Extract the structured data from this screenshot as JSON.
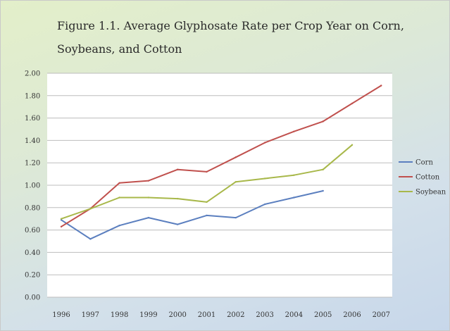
{
  "title_line1": "Figure 1.1.  Average Glyphosate Rate per Crop Year on Corn,",
  "title_line2": "Soybeans, and Cotton",
  "chart_data": {
    "type": "line",
    "title": "Figure 1.1.  Average Glyphosate Rate per Crop Year on Corn, Soybeans, and Cotton",
    "xlabel": "",
    "ylabel": "",
    "x": [
      "1996",
      "1997",
      "1998",
      "1999",
      "2000",
      "2001",
      "2002",
      "2003",
      "2004",
      "2005",
      "2006",
      "2007"
    ],
    "ylim": [
      0,
      2
    ],
    "yticks": [
      "0.00",
      "0.20",
      "0.40",
      "0.60",
      "0.80",
      "1.00",
      "1.20",
      "1.40",
      "1.60",
      "1.80",
      "2.00"
    ],
    "grid": true,
    "legend": "right",
    "series": [
      {
        "name": "Corn",
        "color": "#5b7fbf",
        "values": [
          0.69,
          0.52,
          0.64,
          0.71,
          0.65,
          0.73,
          0.71,
          0.83,
          0.89,
          0.95,
          null,
          null
        ]
      },
      {
        "name": "Cotton",
        "color": "#c0504d",
        "values": [
          0.63,
          0.79,
          1.02,
          1.04,
          1.14,
          1.12,
          1.25,
          1.38,
          1.48,
          1.57,
          1.73,
          1.89
        ]
      },
      {
        "name": "Soybean",
        "color": "#a8b84a",
        "values": [
          0.7,
          0.79,
          0.89,
          0.89,
          0.88,
          0.85,
          1.03,
          1.06,
          1.09,
          1.14,
          1.36,
          null
        ]
      }
    ]
  }
}
